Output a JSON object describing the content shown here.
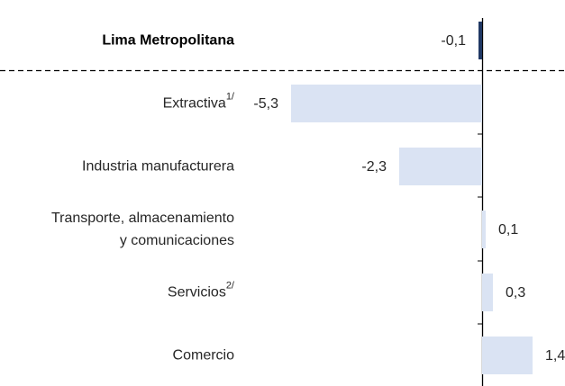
{
  "chart_data": {
    "type": "bar",
    "orientation": "horizontal",
    "categories": [
      "Lima Metropolitana",
      "Extractiva",
      "Industria manufacturera",
      "Transporte, almacenamiento\ny comunicaciones",
      "Servicios",
      "Comercio"
    ],
    "category_notes": [
      null,
      "1/",
      null,
      null,
      "2/",
      null
    ],
    "values": [
      -0.1,
      -5.3,
      -2.3,
      0.1,
      0.3,
      1.4
    ],
    "value_labels": [
      "-0,1",
      "-5,3",
      "-2,3",
      "0,1",
      "0,3",
      "1,4"
    ],
    "colors": [
      "#203864",
      "#dae3f3",
      "#dae3f3",
      "#dae3f3",
      "#dae3f3",
      "#dae3f3"
    ],
    "highlight": [
      true,
      false,
      false,
      false,
      false,
      false
    ],
    "xlim": [
      -6,
      2
    ]
  }
}
